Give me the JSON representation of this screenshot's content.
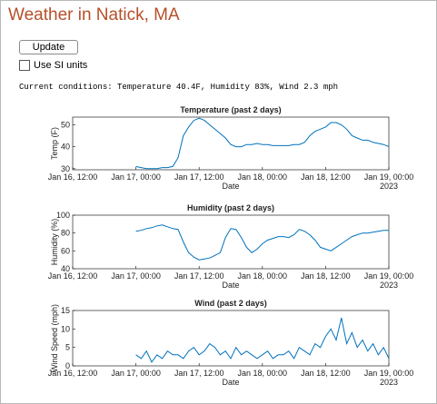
{
  "app": {
    "title": "Weather in Natick, MA",
    "button": "Update",
    "checkbox": "Use SI units",
    "status": "Current conditions: Temperature 40.4F, Humidity 83%, Wind 2.3 mph"
  },
  "chart_data": [
    {
      "type": "line",
      "title": "Temperature (past 2 days)",
      "xlabel": "Date",
      "ylabel": "Temp (F)",
      "xtick_year": "2023",
      "xlim": [
        "2023-01-16T12:00",
        "2023-01-19T00:00"
      ],
      "xticks": [
        {
          "value": "2023-01-16T12:00",
          "label": "Jan 16, 12:00"
        },
        {
          "value": "2023-01-17T00:00",
          "label": "Jan 17, 00:00"
        },
        {
          "value": "2023-01-17T12:00",
          "label": "Jan 17, 12:00"
        },
        {
          "value": "2023-01-18T00:00",
          "label": "Jan 18, 00:00"
        },
        {
          "value": "2023-01-18T12:00",
          "label": "Jan 18, 12:00"
        },
        {
          "value": "2023-01-19T00:00",
          "label": "Jan 19, 00:00"
        }
      ],
      "ylim": [
        29.5,
        53.5
      ],
      "yticks": [
        30,
        40,
        50
      ],
      "x": [
        "2023-01-17T00:00",
        "2023-01-17T01:00",
        "2023-01-17T02:00",
        "2023-01-17T03:00",
        "2023-01-17T04:00",
        "2023-01-17T05:00",
        "2023-01-17T06:00",
        "2023-01-17T07:00",
        "2023-01-17T08:00",
        "2023-01-17T09:00",
        "2023-01-17T10:00",
        "2023-01-17T11:00",
        "2023-01-17T12:00",
        "2023-01-17T13:00",
        "2023-01-17T14:00",
        "2023-01-17T15:00",
        "2023-01-17T16:00",
        "2023-01-17T17:00",
        "2023-01-17T18:00",
        "2023-01-17T19:00",
        "2023-01-17T20:00",
        "2023-01-17T21:00",
        "2023-01-17T22:00",
        "2023-01-17T23:00",
        "2023-01-18T00:00",
        "2023-01-18T01:00",
        "2023-01-18T02:00",
        "2023-01-18T03:00",
        "2023-01-18T04:00",
        "2023-01-18T05:00",
        "2023-01-18T06:00",
        "2023-01-18T07:00",
        "2023-01-18T08:00",
        "2023-01-18T09:00",
        "2023-01-18T10:00",
        "2023-01-18T11:00",
        "2023-01-18T12:00",
        "2023-01-18T13:00",
        "2023-01-18T14:00",
        "2023-01-18T15:00",
        "2023-01-18T16:00",
        "2023-01-18T17:00",
        "2023-01-18T18:00",
        "2023-01-18T19:00",
        "2023-01-18T20:00",
        "2023-01-18T21:00",
        "2023-01-18T22:00",
        "2023-01-18T23:00",
        "2023-01-19T00:00"
      ],
      "series": [
        {
          "color": "#0072bd",
          "values": [
            31,
            30.5,
            30,
            30,
            30,
            30.5,
            30.5,
            31,
            35,
            45,
            49,
            52,
            53,
            52,
            50,
            48,
            46,
            44,
            41,
            40,
            40,
            41,
            41,
            41.5,
            41,
            41,
            40.5,
            40.5,
            40.5,
            40.5,
            41,
            41,
            42,
            45,
            47,
            48,
            49,
            51,
            51,
            50,
            48,
            45,
            44,
            43,
            43,
            42,
            41.5,
            41,
            40
          ]
        }
      ]
    },
    {
      "type": "line",
      "title": "Humidity (past 2 days)",
      "xlabel": "Date",
      "ylabel": "Humidity (%)",
      "xtick_year": "2023",
      "xlim": [
        "2023-01-16T12:00",
        "2023-01-19T00:00"
      ],
      "xticks": [
        {
          "value": "2023-01-16T12:00",
          "label": "Jan 16, 12:00"
        },
        {
          "value": "2023-01-17T00:00",
          "label": "Jan 17, 00:00"
        },
        {
          "value": "2023-01-17T12:00",
          "label": "Jan 17, 12:00"
        },
        {
          "value": "2023-01-18T00:00",
          "label": "Jan 18, 00:00"
        },
        {
          "value": "2023-01-18T12:00",
          "label": "Jan 18, 12:00"
        },
        {
          "value": "2023-01-19T00:00",
          "label": "Jan 19, 00:00"
        }
      ],
      "ylim": [
        40,
        100
      ],
      "yticks": [
        40,
        60,
        80,
        100
      ],
      "x": [
        "2023-01-17T00:00",
        "2023-01-17T01:00",
        "2023-01-17T02:00",
        "2023-01-17T03:00",
        "2023-01-17T04:00",
        "2023-01-17T05:00",
        "2023-01-17T06:00",
        "2023-01-17T07:00",
        "2023-01-17T08:00",
        "2023-01-17T09:00",
        "2023-01-17T10:00",
        "2023-01-17T11:00",
        "2023-01-17T12:00",
        "2023-01-17T13:00",
        "2023-01-17T14:00",
        "2023-01-17T15:00",
        "2023-01-17T16:00",
        "2023-01-17T17:00",
        "2023-01-17T18:00",
        "2023-01-17T19:00",
        "2023-01-17T20:00",
        "2023-01-17T21:00",
        "2023-01-17T22:00",
        "2023-01-17T23:00",
        "2023-01-18T00:00",
        "2023-01-18T01:00",
        "2023-01-18T02:00",
        "2023-01-18T03:00",
        "2023-01-18T04:00",
        "2023-01-18T05:00",
        "2023-01-18T06:00",
        "2023-01-18T07:00",
        "2023-01-18T08:00",
        "2023-01-18T09:00",
        "2023-01-18T10:00",
        "2023-01-18T11:00",
        "2023-01-18T12:00",
        "2023-01-18T13:00",
        "2023-01-18T14:00",
        "2023-01-18T15:00",
        "2023-01-18T16:00",
        "2023-01-18T17:00",
        "2023-01-18T18:00",
        "2023-01-18T19:00",
        "2023-01-18T20:00",
        "2023-01-18T21:00",
        "2023-01-18T22:00",
        "2023-01-18T23:00",
        "2023-01-19T00:00"
      ],
      "series": [
        {
          "color": "#0072bd",
          "values": [
            82,
            83,
            85,
            86,
            88,
            89,
            87,
            85,
            84,
            70,
            58,
            53,
            50,
            51,
            52,
            55,
            58,
            75,
            85,
            84,
            75,
            64,
            58,
            62,
            68,
            72,
            74,
            76,
            76,
            75,
            78,
            84,
            82,
            78,
            72,
            64,
            62,
            60,
            64,
            68,
            72,
            76,
            78,
            80,
            80,
            81,
            82,
            83,
            83
          ]
        }
      ]
    },
    {
      "type": "line",
      "title": "Wind (past 2 days)",
      "xlabel": "Date",
      "ylabel": "Wind Speed (mph)",
      "xtick_year": "2023",
      "xlim": [
        "2023-01-16T12:00",
        "2023-01-19T00:00"
      ],
      "xticks": [
        {
          "value": "2023-01-16T12:00",
          "label": "Jan 16, 12:00"
        },
        {
          "value": "2023-01-17T00:00",
          "label": "Jan 17, 00:00"
        },
        {
          "value": "2023-01-17T12:00",
          "label": "Jan 17, 12:00"
        },
        {
          "value": "2023-01-18T00:00",
          "label": "Jan 18, 00:00"
        },
        {
          "value": "2023-01-18T12:00",
          "label": "Jan 18, 12:00"
        },
        {
          "value": "2023-01-19T00:00",
          "label": "Jan 19, 00:00"
        }
      ],
      "ylim": [
        0,
        15
      ],
      "yticks": [
        0,
        5,
        10,
        15
      ],
      "x": [
        "2023-01-17T00:00",
        "2023-01-17T01:00",
        "2023-01-17T02:00",
        "2023-01-17T03:00",
        "2023-01-17T04:00",
        "2023-01-17T05:00",
        "2023-01-17T06:00",
        "2023-01-17T07:00",
        "2023-01-17T08:00",
        "2023-01-17T09:00",
        "2023-01-17T10:00",
        "2023-01-17T11:00",
        "2023-01-17T12:00",
        "2023-01-17T13:00",
        "2023-01-17T14:00",
        "2023-01-17T15:00",
        "2023-01-17T16:00",
        "2023-01-17T17:00",
        "2023-01-17T18:00",
        "2023-01-17T19:00",
        "2023-01-17T20:00",
        "2023-01-17T21:00",
        "2023-01-17T22:00",
        "2023-01-17T23:00",
        "2023-01-18T00:00",
        "2023-01-18T01:00",
        "2023-01-18T02:00",
        "2023-01-18T03:00",
        "2023-01-18T04:00",
        "2023-01-18T05:00",
        "2023-01-18T06:00",
        "2023-01-18T07:00",
        "2023-01-18T08:00",
        "2023-01-18T09:00",
        "2023-01-18T10:00",
        "2023-01-18T11:00",
        "2023-01-18T12:00",
        "2023-01-18T13:00",
        "2023-01-18T14:00",
        "2023-01-18T15:00",
        "2023-01-18T16:00",
        "2023-01-18T17:00",
        "2023-01-18T18:00",
        "2023-01-18T19:00",
        "2023-01-18T20:00",
        "2023-01-18T21:00",
        "2023-01-18T22:00",
        "2023-01-18T23:00",
        "2023-01-19T00:00"
      ],
      "series": [
        {
          "color": "#0072bd",
          "values": [
            3,
            2,
            4,
            1,
            3,
            2,
            4,
            3,
            3,
            2,
            4,
            5,
            3,
            4,
            6,
            5,
            3,
            4,
            2,
            5,
            3,
            4,
            3,
            2,
            3,
            4,
            2,
            3,
            3,
            4,
            2,
            5,
            4,
            3,
            6,
            5,
            8,
            10,
            7,
            13,
            6,
            9,
            5,
            7,
            4,
            6,
            3,
            5,
            2
          ]
        }
      ]
    }
  ]
}
